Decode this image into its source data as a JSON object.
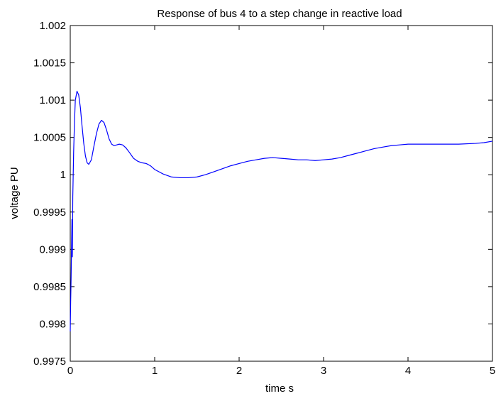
{
  "chart_data": {
    "type": "line",
    "title": "Response of bus 4 to a step change in reactive load",
    "xlabel": "time s",
    "ylabel": "voltage PU",
    "xlim": [
      0,
      5
    ],
    "ylim": [
      0.9975,
      1.002
    ],
    "x_ticks": [
      0,
      1,
      2,
      3,
      4,
      5
    ],
    "x_tick_labels": [
      "0",
      "1",
      "2",
      "3",
      "4",
      "5"
    ],
    "y_ticks": [
      0.9975,
      0.998,
      0.9985,
      0.999,
      0.9995,
      1.0,
      1.0005,
      1.001,
      1.0015,
      1.002
    ],
    "y_tick_labels": [
      "0.9975",
      "0.998",
      "0.9985",
      "0.999",
      "0.9995",
      "1",
      "1.0005",
      "1.001",
      "1.0015",
      "1.002"
    ],
    "grid": false,
    "line_color": "#0000ff",
    "series": [
      {
        "x": [
          0,
          0.005,
          0.01,
          0.015,
          0.02,
          0.025,
          0.03,
          0.04,
          0.05,
          0.06,
          0.08,
          0.1,
          0.12,
          0.14,
          0.16,
          0.18,
          0.2,
          0.22,
          0.25,
          0.28,
          0.31,
          0.34,
          0.37,
          0.4,
          0.43,
          0.46,
          0.49,
          0.52,
          0.55,
          0.58,
          0.62,
          0.66,
          0.7,
          0.75,
          0.8,
          0.85,
          0.9,
          0.95,
          1.0,
          1.05,
          1.1,
          1.2,
          1.3,
          1.4,
          1.5,
          1.6,
          1.7,
          1.8,
          1.9,
          2.0,
          2.1,
          2.2,
          2.3,
          2.4,
          2.5,
          2.6,
          2.7,
          2.8,
          2.9,
          3.0,
          3.1,
          3.2,
          3.3,
          3.4,
          3.5,
          3.6,
          3.7,
          3.8,
          3.9,
          4.0,
          4.2,
          4.4,
          4.6,
          4.8,
          4.9,
          5.0
        ],
        "y": [
          0.9979,
          0.9983,
          0.9986,
          0.999,
          0.9994,
          0.9989,
          0.9997,
          1.0003,
          1.0007,
          1.001,
          1.00112,
          1.00107,
          1.0009,
          1.00065,
          1.00042,
          1.00025,
          1.00016,
          1.00014,
          1.0002,
          1.00038,
          1.00055,
          1.00068,
          1.00073,
          1.0007,
          1.0006,
          1.00048,
          1.00041,
          1.00039,
          1.0004,
          1.00041,
          1.0004,
          1.00036,
          1.0003,
          1.00022,
          1.00018,
          1.00016,
          1.00015,
          1.00012,
          1.00007,
          1.00004,
          1.00001,
          0.99997,
          0.99996,
          0.99996,
          0.99997,
          1.0,
          1.00004,
          1.00008,
          1.00012,
          1.00015,
          1.00018,
          1.0002,
          1.00022,
          1.00023,
          1.00022,
          1.00021,
          1.0002,
          1.0002,
          1.00019,
          1.0002,
          1.00021,
          1.00023,
          1.00026,
          1.00029,
          1.00032,
          1.00035,
          1.00037,
          1.00039,
          1.0004,
          1.00041,
          1.00041,
          1.00041,
          1.00041,
          1.00042,
          1.00043,
          1.00045
        ]
      }
    ]
  }
}
